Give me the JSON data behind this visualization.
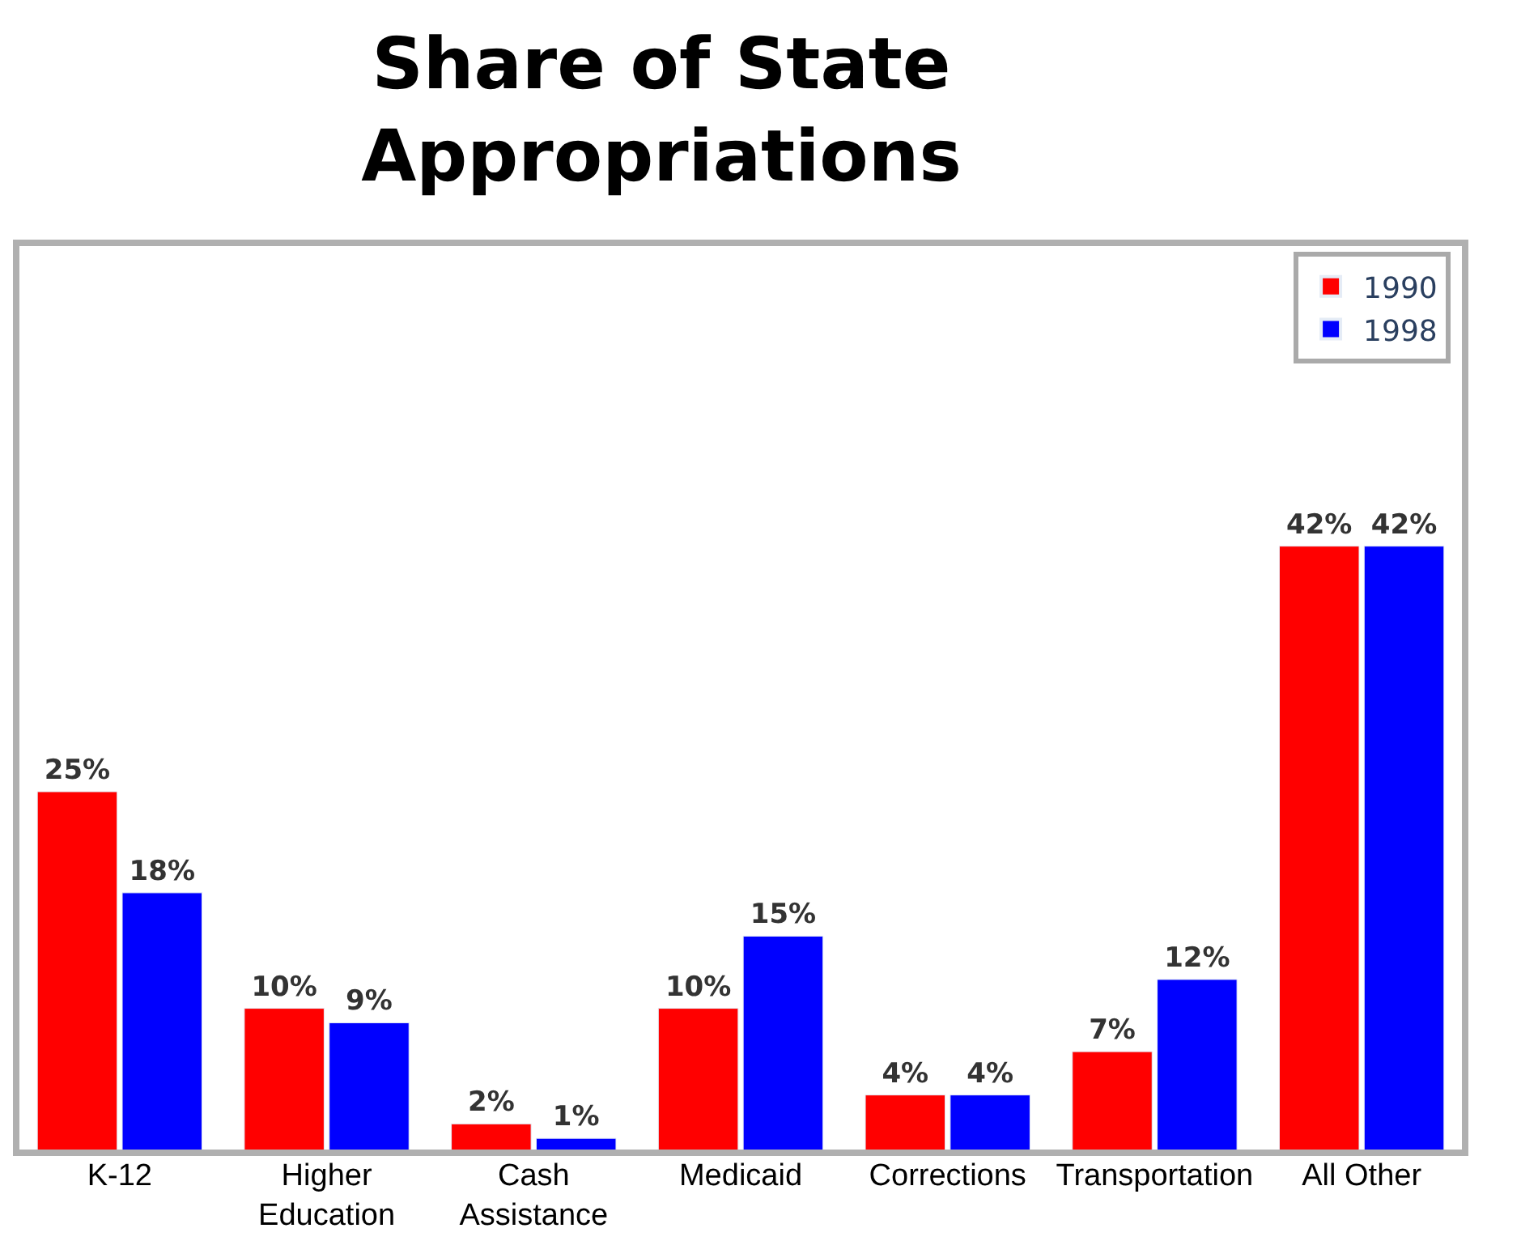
{
  "chart_data": {
    "type": "bar",
    "title": "Share of State Appropriations",
    "categories": [
      "K-12",
      "Higher Education",
      "Cash Assistance",
      "Medicaid",
      "Corrections",
      "Transportation",
      "All Other"
    ],
    "series": [
      {
        "name": "1990",
        "color": "#ff0000",
        "values": [
          25,
          10,
          2,
          10,
          4,
          7,
          42
        ],
        "value_labels": [
          "25%",
          "10%",
          "2%",
          "10%",
          "4%",
          "7%",
          "42%"
        ]
      },
      {
        "name": "1998",
        "color": "#0000ff",
        "values": [
          18,
          9,
          1,
          15,
          4,
          12,
          42
        ],
        "value_labels": [
          "18%",
          "9%",
          "1%",
          "15%",
          "4%",
          "12%",
          "42%"
        ]
      }
    ],
    "legend": "top right"
  }
}
